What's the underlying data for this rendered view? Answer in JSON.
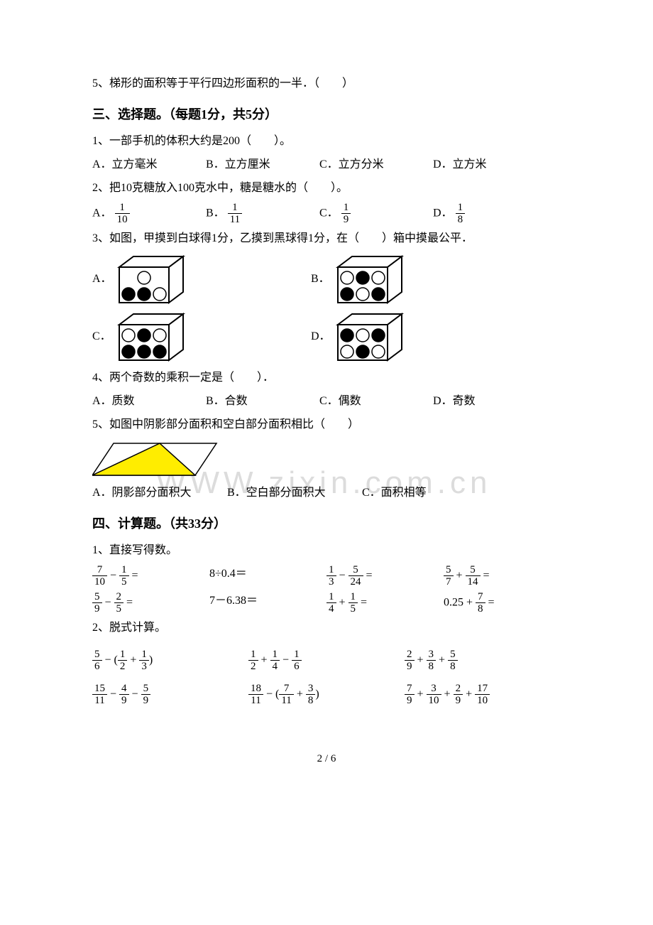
{
  "q5_top": "5、梯形的面积等于平行四边形面积的一半．（　　）",
  "section3": {
    "title": "三、选择题。（每题1分，共5分）",
    "q1": {
      "stem": "1、一部手机的体积大约是200（　　）。",
      "A": "A．立方毫米",
      "B": "B．立方厘米",
      "C": "C．立方分米",
      "D": "D．立方米"
    },
    "q2": {
      "stem": "2、把10克糖放入100克水中，糖是糖水的（　　）。",
      "A_pre": "A．",
      "A_num": "1",
      "A_den": "10",
      "B_pre": "B．",
      "B_num": "1",
      "B_den": "11",
      "C_pre": "C．",
      "C_num": "1",
      "C_den": "9",
      "D_pre": "D．",
      "D_num": "1",
      "D_den": "8"
    },
    "q3": {
      "stem": "3、如图，甲摸到白球得1分，乙摸到黑球得1分，在（　　）箱中摸最公平．",
      "A": "A．",
      "B": "B．",
      "C": "C．",
      "D": "D．",
      "colors": {
        "white": "#ffffff",
        "black": "#000000",
        "stroke": "#000000"
      },
      "boxes": {
        "A_balls": [
          [
            "w"
          ],
          [
            "b",
            "b",
            "w"
          ]
        ],
        "B_balls": [
          [
            "w",
            "b",
            "w"
          ],
          [
            "b",
            "w",
            "b"
          ]
        ],
        "C_balls": [
          [
            "w",
            "b",
            "w"
          ],
          [
            "b",
            "b",
            "b"
          ]
        ],
        "D_balls": [
          [
            "b",
            "w",
            "b"
          ],
          [
            "w",
            "b",
            "w"
          ]
        ]
      }
    },
    "q4": {
      "stem": "4、两个奇数的乘积一定是（　　）．",
      "A": "A．质数",
      "B": "B．合数",
      "C": "C．偶数",
      "D": "D．奇数"
    },
    "q5": {
      "stem": "5、如图中阴影部分面积和空白部分面积相比（　　）",
      "A": "A．阴影部分面积大",
      "B": "B．空白部分面积大",
      "C": "C．面积相等",
      "triangle": {
        "fill": "#ffed00",
        "stroke": "#000000",
        "width": 180,
        "height": 55
      }
    }
  },
  "section4": {
    "title": "四、计算题。（共33分）",
    "q1_label": "1、直接写得数。",
    "row1": {
      "c1": {
        "type": "fracsub",
        "a_n": "7",
        "a_d": "10",
        "b_n": "1",
        "b_d": "5"
      },
      "c2": {
        "type": "text",
        "text": "8÷0.4＝"
      },
      "c3": {
        "type": "fracsub",
        "a_n": "1",
        "a_d": "3",
        "b_n": "5",
        "b_d": "24"
      },
      "c4": {
        "type": "fracadd",
        "a_n": "5",
        "a_d": "7",
        "b_n": "5",
        "b_d": "14"
      }
    },
    "row2": {
      "c1": {
        "type": "fracsub",
        "a_n": "5",
        "a_d": "9",
        "b_n": "2",
        "b_d": "5"
      },
      "c2": {
        "type": "text",
        "text": "7－6.38＝"
      },
      "c3": {
        "type": "fracadd",
        "a_n": "1",
        "a_d": "4",
        "b_n": "1",
        "b_d": "5"
      },
      "c4": {
        "type": "decfrac",
        "dec": "0.25",
        "op": "+",
        "n": "7",
        "d": "8"
      }
    },
    "q2_label": "2、脱式计算。",
    "row3": {
      "c1": {
        "expr": "5/6 - (1/2 + 1/3)",
        "parts": [
          [
            "5",
            "6"
          ],
          "-",
          "(",
          [
            "1",
            "2"
          ],
          "+",
          [
            "1",
            "3"
          ],
          ")"
        ]
      },
      "c2": {
        "expr": "1/2 + 1/4 - 1/6",
        "parts": [
          [
            "1",
            "2"
          ],
          "+",
          [
            "1",
            "4"
          ],
          "-",
          [
            "1",
            "6"
          ]
        ]
      },
      "c3": {
        "expr": "2/9 + 3/8 + 5/8",
        "parts": [
          [
            "2",
            "9"
          ],
          "+",
          [
            "3",
            "8"
          ],
          "+",
          [
            "5",
            "8"
          ]
        ]
      }
    },
    "row4": {
      "c1": {
        "expr": "15/11 - 4/9 - 5/9",
        "parts": [
          [
            "15",
            "11"
          ],
          "-",
          [
            "4",
            "9"
          ],
          "-",
          [
            "5",
            "9"
          ]
        ]
      },
      "c2": {
        "expr": "18/11 - (7/11 + 3/8)",
        "parts": [
          [
            "18",
            "11"
          ],
          "-",
          "(",
          [
            "7",
            "11"
          ],
          "+",
          [
            "3",
            "8"
          ],
          ")"
        ]
      },
      "c3": {
        "expr": "7/9 + 3/10 + 2/9 + 17/10",
        "parts": [
          [
            "7",
            "9"
          ],
          "+",
          [
            "3",
            "10"
          ],
          "+",
          [
            "2",
            "9"
          ],
          "+",
          [
            "17",
            "10"
          ]
        ]
      }
    }
  },
  "watermark_text": "WWW.zixin.com.cn",
  "footer": "2 / 6"
}
